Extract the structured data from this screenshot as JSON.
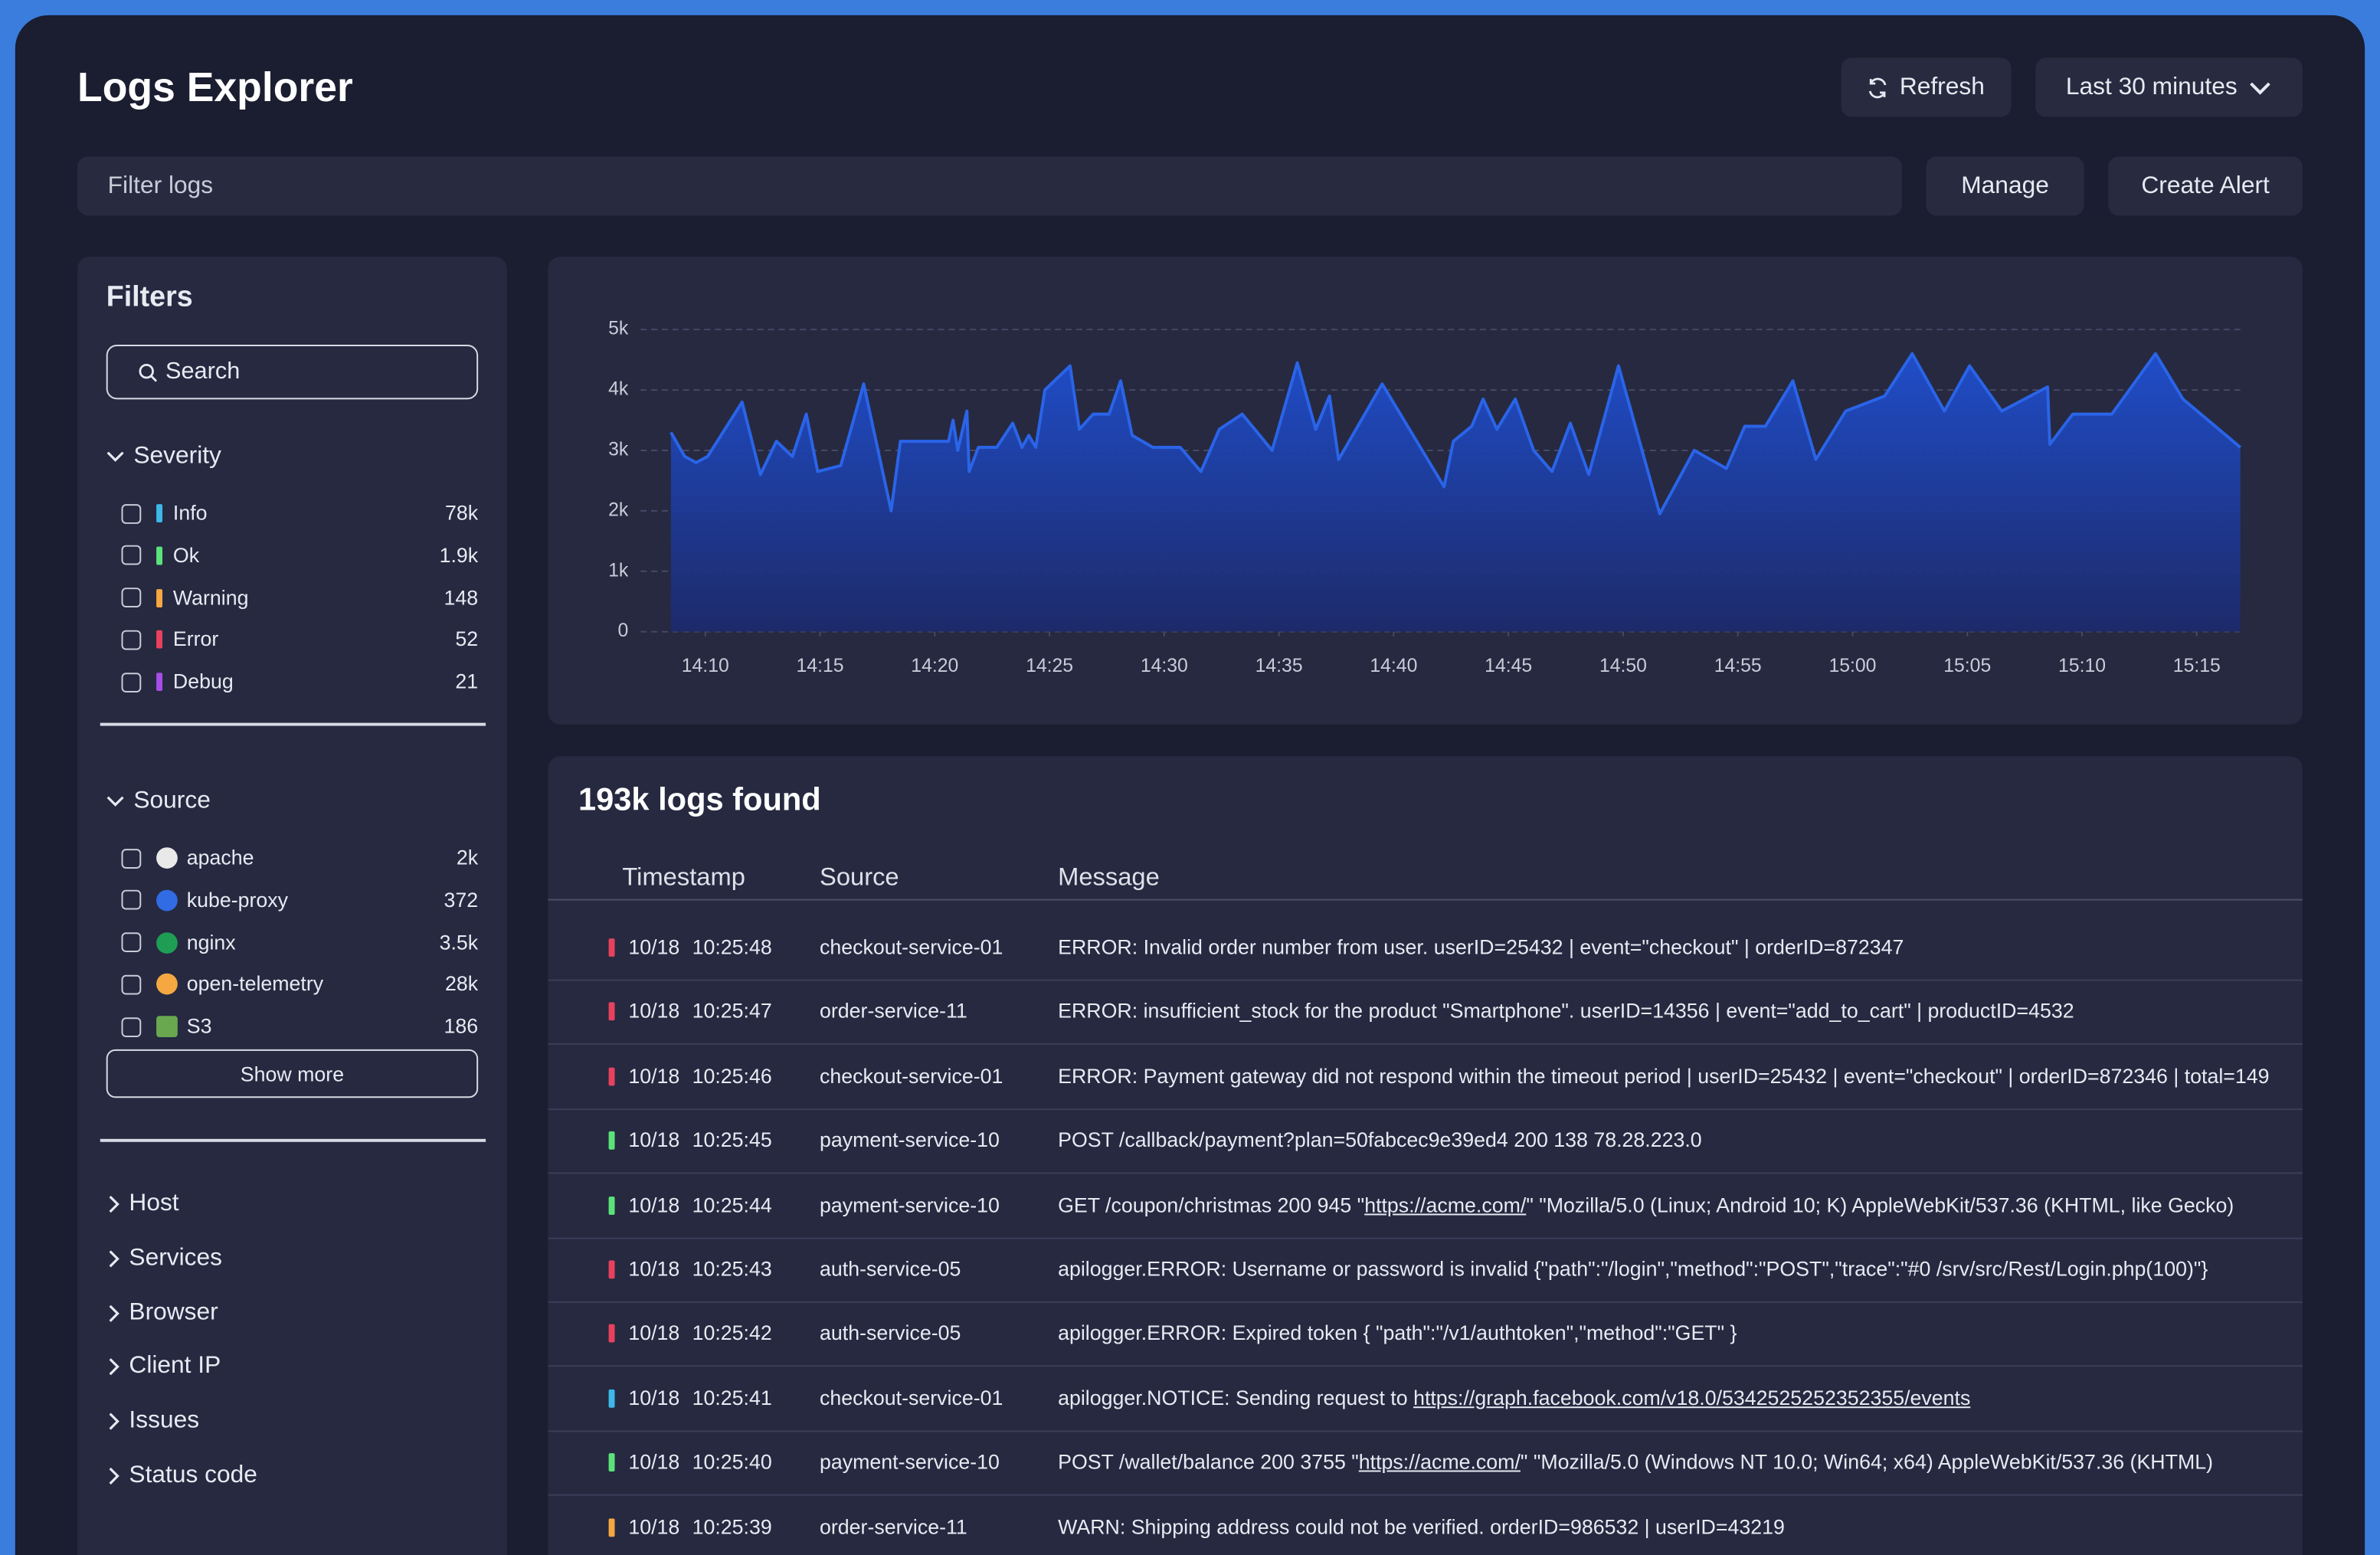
{
  "header": {
    "title": "Logs Explorer",
    "refresh": "Refresh",
    "time_range": "Last 30 minutes"
  },
  "toolbar": {
    "filter_placeholder": "Filter logs",
    "manage": "Manage",
    "create_alert": "Create Alert"
  },
  "filters": {
    "title": "Filters",
    "search_placeholder": "Search",
    "severity": {
      "title": "Severity",
      "items": [
        {
          "name": "Info",
          "count": "78k",
          "color": "#3db8e8"
        },
        {
          "name": "Ok",
          "count": "1.9k",
          "color": "#5be37a"
        },
        {
          "name": "Warning",
          "count": 148,
          "color": "#f5a742"
        },
        {
          "name": "Error",
          "count": 52,
          "color": "#e8415e"
        },
        {
          "name": "Debug",
          "count": 21,
          "color": "#a64ee8"
        }
      ]
    },
    "source": {
      "title": "Source",
      "items": [
        {
          "name": "apache",
          "count": "2k",
          "color": "#e9e9e9"
        },
        {
          "name": "kube-proxy",
          "count": 372,
          "color": "#326ce5"
        },
        {
          "name": "nginx",
          "count": "3.5k",
          "color": "#1f9d55"
        },
        {
          "name": "open-telemetry",
          "count": "28k",
          "color": "#f5a742"
        },
        {
          "name": "S3",
          "count": 186,
          "color": "#6aa84f"
        }
      ]
    },
    "show_more": "Show more",
    "groups": [
      "Host",
      "Services",
      "Browser",
      "Client IP",
      "Issues",
      "Status code"
    ]
  },
  "chart_data": {
    "type": "area",
    "color": "#2a64e8",
    "x": [
      8.5,
      9.1,
      9.6,
      10.1,
      11.6,
      12.4,
      13.1,
      13.8,
      14.4,
      14.9,
      15.9,
      16.9,
      18.1,
      18.5,
      20.6,
      20.8,
      21.0,
      21.4,
      21.5,
      21.9,
      22.7,
      23.4,
      23.8,
      24.1,
      24.4,
      24.8,
      25.9,
      26.3,
      26.9,
      27.6,
      28.1,
      28.6,
      29.5,
      30.7,
      31.6,
      32.4,
      33.4,
      34.7,
      35.8,
      36.6,
      37.2,
      37.6,
      39.5,
      42.2,
      42.6,
      43.4,
      43.9,
      44.5,
      45.3,
      46.1,
      46.9,
      47.7,
      48.5,
      49.8,
      51.6,
      53.1,
      54.5,
      55.3,
      56.2,
      57.4,
      58.4,
      59.7,
      61.4,
      62.6,
      64.0,
      65.1,
      66.5,
      68.5,
      68.6,
      69.6,
      71.3,
      73.2,
      74.4,
      76.9
    ],
    "values": [
      3300,
      2900,
      2800,
      2900,
      3800,
      2600,
      3150,
      2900,
      3600,
      2650,
      2750,
      4100,
      2000,
      3150,
      3150,
      3500,
      3000,
      3650,
      2650,
      3050,
      3050,
      3450,
      3050,
      3250,
      3050,
      4000,
      4400,
      3350,
      3600,
      3600,
      4150,
      3250,
      3050,
      3050,
      2650,
      3350,
      3600,
      3000,
      4450,
      3350,
      3900,
      2850,
      4100,
      2400,
      3150,
      3400,
      3850,
      3350,
      3850,
      3000,
      2650,
      3450,
      2600,
      4400,
      1950,
      3000,
      2700,
      3400,
      3400,
      4150,
      2850,
      3650,
      3900,
      4600,
      3650,
      4400,
      3650,
      4050,
      3100,
      3600,
      3600,
      4600,
      3850,
      3050
    ],
    "xlim": [
      8.5,
      76.9
    ],
    "xticks": [
      {
        "value": 10,
        "label": "14:10"
      },
      {
        "value": 15,
        "label": "14:15"
      },
      {
        "value": 20,
        "label": "14:20"
      },
      {
        "value": 25,
        "label": "14:25"
      },
      {
        "value": 30,
        "label": "14:30"
      },
      {
        "value": 35,
        "label": "14:35"
      },
      {
        "value": 40,
        "label": "14:40"
      },
      {
        "value": 45,
        "label": "14:45"
      },
      {
        "value": 50,
        "label": "14:50"
      },
      {
        "value": 55,
        "label": "14:55"
      },
      {
        "value": 60,
        "label": "15:00"
      },
      {
        "value": 65,
        "label": "15:05"
      },
      {
        "value": 70,
        "label": "15:10"
      },
      {
        "value": 75,
        "label": "15:15"
      }
    ],
    "ylim": [
      0,
      5000
    ],
    "yticks": [
      0,
      {
        "value": 1000,
        "label": "1k"
      },
      {
        "value": 2000,
        "label": "2k"
      },
      {
        "value": 3000,
        "label": "3k"
      },
      {
        "value": 4000,
        "label": "4k"
      },
      {
        "value": 5000,
        "label": "5k"
      }
    ],
    "grid": true
  },
  "logs": {
    "title": "193k logs found",
    "columns": [
      "Timestamp",
      "Source",
      "Message"
    ],
    "rows": [
      {
        "color": "#e8415e",
        "date": "10/18",
        "time": "10:25:48",
        "source": "checkout-service-01",
        "message": [
          "ERROR: Invalid order number from user. userID=25432 | event=\"checkout\" | orderID=872347"
        ]
      },
      {
        "color": "#e8415e",
        "date": "10/18",
        "time": "10:25:47",
        "source": "order-service-11",
        "message": [
          "ERROR: insufficient_stock for the product \"Smartphone\". userID=14356 | event=\"add_to_cart\" | productID=4532"
        ]
      },
      {
        "color": "#e8415e",
        "date": "10/18",
        "time": "10:25:46",
        "source": "checkout-service-01",
        "message": [
          "ERROR: Payment gateway did not respond within the timeout period | userID=25432 | event=\"checkout\" | orderID=872346 | total=149"
        ]
      },
      {
        "color": "#5be37a",
        "date": "10/18",
        "time": "10:25:45",
        "source": "payment-service-10",
        "message": [
          "POST /callback/payment?plan=50fabcec9e39ed4 200 138 78.28.223.0"
        ]
      },
      {
        "color": "#5be37a",
        "date": "10/18",
        "time": "10:25:44",
        "source": "payment-service-10",
        "message": [
          "GET /coupon/christmas 200 945 \"",
          {
            "text": "https://acme.com/",
            "link": true
          },
          "\" \"Mozilla/5.0 (Linux; Android 10; K) AppleWebKit/537.36 (KHTML, like Gecko)"
        ]
      },
      {
        "color": "#e8415e",
        "date": "10/18",
        "time": "10:25:43",
        "source": "auth-service-05",
        "message": [
          "apilogger.ERROR: Username or password is invalid {\"path\":\"/login\",\"method\":\"POST\",\"trace\":\"#0 /srv/src/Rest/Login.php(100)\"}"
        ]
      },
      {
        "color": "#e8415e",
        "date": "10/18",
        "time": "10:25:42",
        "source": "auth-service-05",
        "message": [
          "apilogger.ERROR: Expired token { \"path\":\"/v1/authtoken\",\"method\":\"GET\" }"
        ]
      },
      {
        "color": "#3db8e8",
        "date": "10/18",
        "time": "10:25:41",
        "source": "checkout-service-01",
        "message": [
          "apilogger.NOTICE: Sending request to ",
          {
            "text": "https://graph.facebook.com/v18.0/5342525252352355/events",
            "link": true
          }
        ]
      },
      {
        "color": "#5be37a",
        "date": "10/18",
        "time": "10:25:40",
        "source": "payment-service-10",
        "message": [
          "POST /wallet/balance 200 3755 \"",
          {
            "text": "https://acme.com/",
            "link": true
          },
          "\" \"Mozilla/5.0 (Windows NT 10.0; Win64; x64) AppleWebKit/537.36 (KHTML)"
        ]
      },
      {
        "color": "#f5a742",
        "date": "10/18",
        "time": "10:25:39",
        "source": "order-service-11",
        "message": [
          "WARN: Shipping address could not be verified. orderID=986532 | userID=43219"
        ]
      }
    ]
  }
}
